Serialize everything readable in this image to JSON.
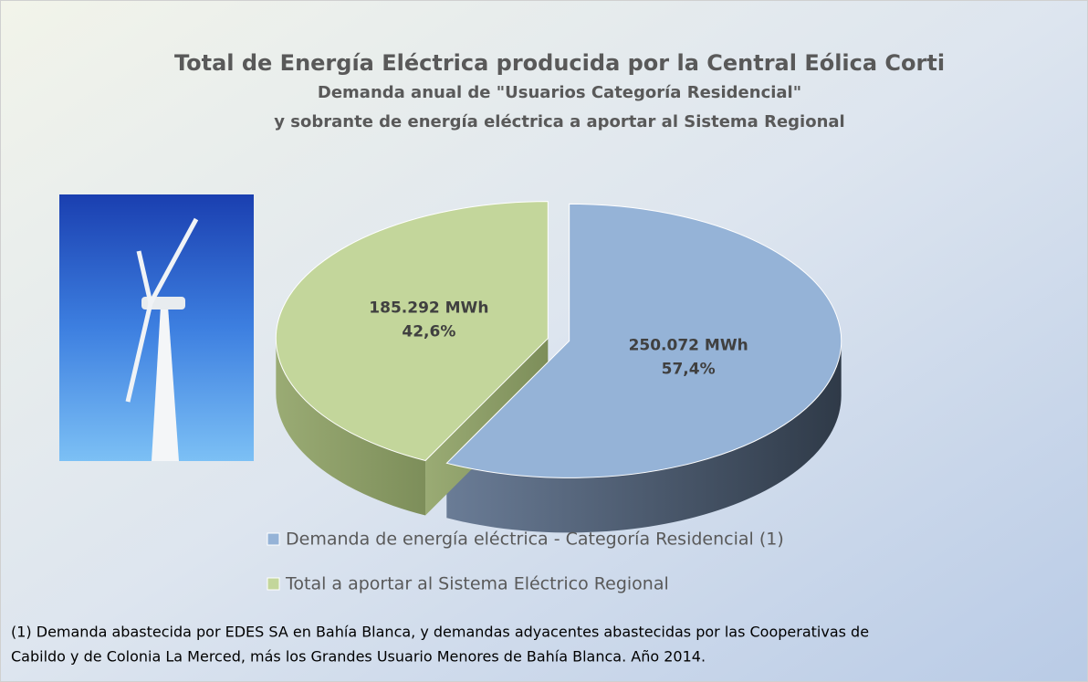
{
  "chart_data": {
    "type": "pie",
    "title": "Total de Energía Eléctrica producida por la Central  Eólica Corti",
    "subtitle": [
      "Demanda anual de \"Usuarios Categoría Residencial\"",
      "y sobrante de energía eléctrica a aportar al Sistema Regional"
    ],
    "categories": [
      "Demanda de energía eléctrica - Categoría Residencial (1)",
      "Total a aportar al Sistema Eléctrico Regional"
    ],
    "values": [
      250072,
      185292
    ],
    "value_labels": [
      "250.072 MWh",
      "185.292 MWh"
    ],
    "percentages": [
      57.4,
      42.6
    ],
    "percentage_labels": [
      "57,4%",
      "42,6%"
    ],
    "colors": [
      "#95b3d7",
      "#c3d69b"
    ],
    "legend": "bottom",
    "note": [
      "(1) Demanda abastecida por EDES SA en Bahía Blanca, y demandas adyacentes abastecidas por las Cooperativas de",
      "Cabildo y de Colonia La Merced, más los Grandes Usuario Menores de Bahía Blanca. Año 2014."
    ]
  }
}
